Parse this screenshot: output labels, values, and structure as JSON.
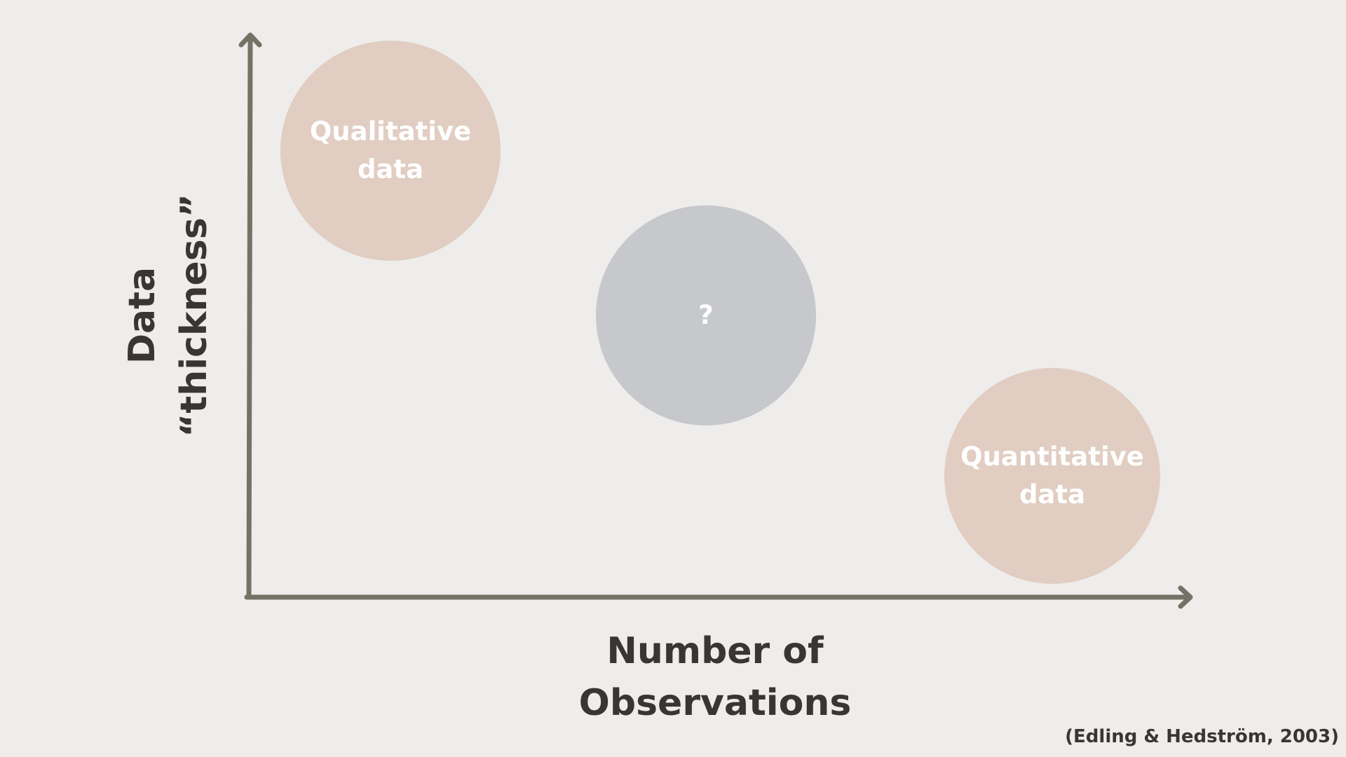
{
  "diagram": {
    "y_axis_label_line1": "Data",
    "y_axis_label_line2": "“thickness”",
    "x_axis_label_line1": "Number of",
    "x_axis_label_line2": "Observations",
    "citation": "(Edling & Hedström, 2003)",
    "nodes": [
      {
        "label": "Qualitative\ndata",
        "color": "#e1cdc1"
      },
      {
        "label": "?",
        "color": "#c6c8cc"
      },
      {
        "label": "Quantitative\ndata",
        "color": "#e1cdc1"
      }
    ],
    "axis_color": "#727365",
    "text_color": "#3a3532",
    "background": "#efedeb"
  }
}
